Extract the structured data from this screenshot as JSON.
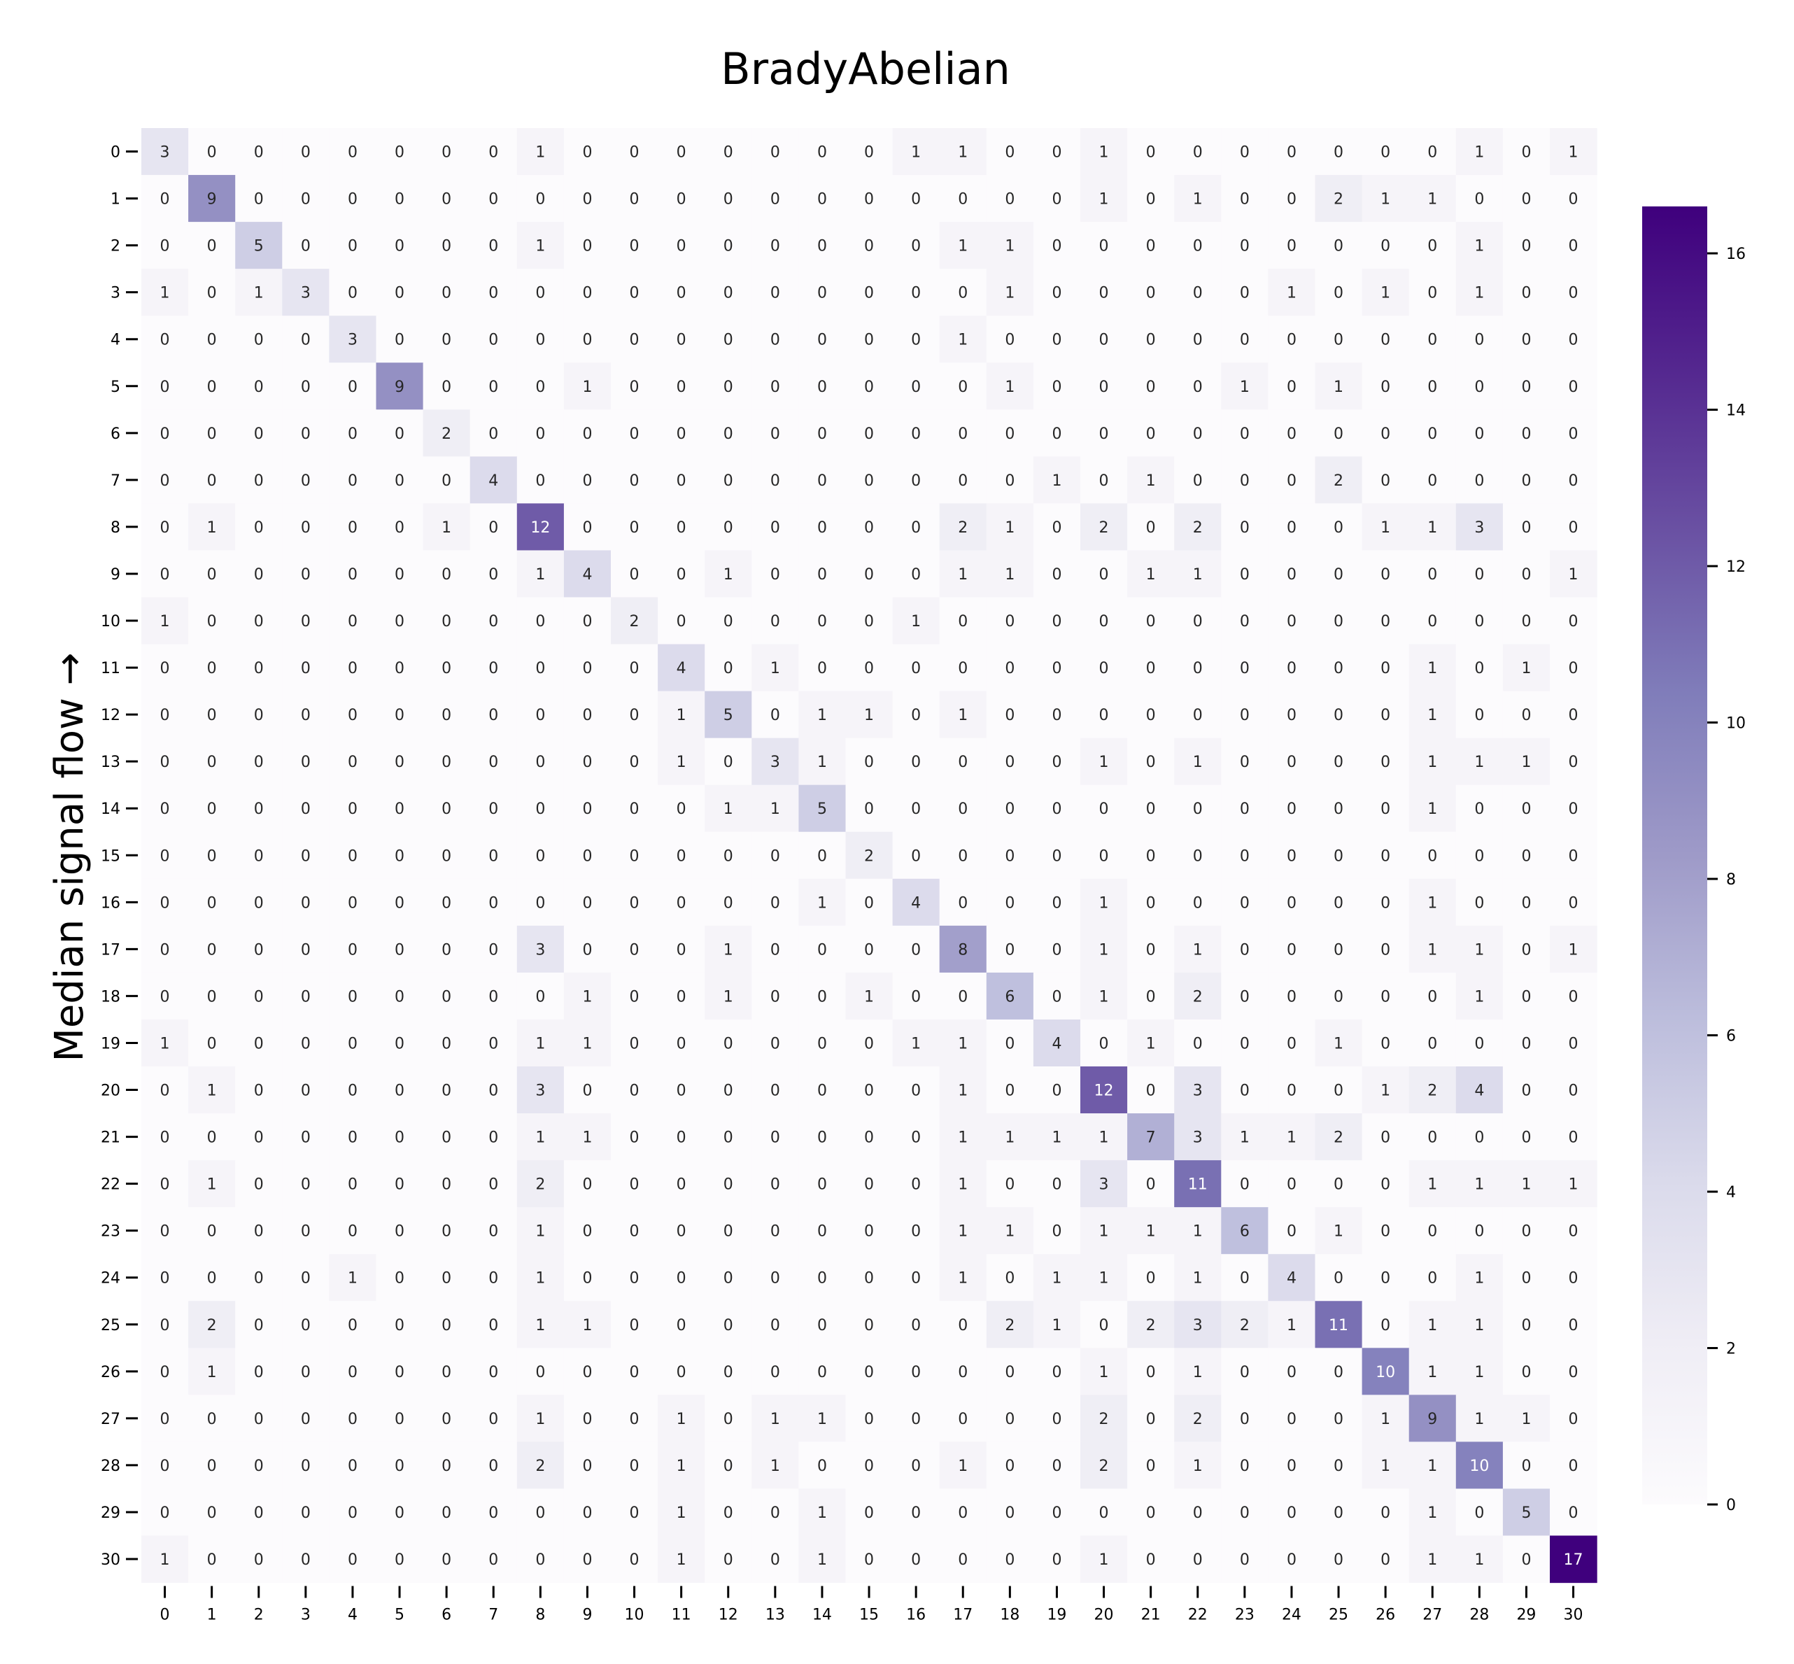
{
  "chart_data": {
    "type": "heatmap",
    "title": "BradyAbelian",
    "ylabel": "Median signal flow →",
    "xlabel": "",
    "x_categories": [
      "0",
      "1",
      "2",
      "3",
      "4",
      "5",
      "6",
      "7",
      "8",
      "9",
      "10",
      "11",
      "12",
      "13",
      "14",
      "15",
      "16",
      "17",
      "18",
      "19",
      "20",
      "21",
      "22",
      "23",
      "24",
      "25",
      "26",
      "27",
      "28",
      "29",
      "30"
    ],
    "y_categories": [
      "0",
      "1",
      "2",
      "3",
      "4",
      "5",
      "6",
      "7",
      "8",
      "9",
      "10",
      "11",
      "12",
      "13",
      "14",
      "15",
      "16",
      "17",
      "18",
      "19",
      "20",
      "21",
      "22",
      "23",
      "24",
      "25",
      "26",
      "27",
      "28",
      "29",
      "30"
    ],
    "matrix": [
      [
        3,
        0,
        0,
        0,
        0,
        0,
        0,
        0,
        1,
        0,
        0,
        0,
        0,
        0,
        0,
        0,
        1,
        1,
        0,
        0,
        1,
        0,
        0,
        0,
        0,
        0,
        0,
        0,
        1,
        0,
        1
      ],
      [
        0,
        9,
        0,
        0,
        0,
        0,
        0,
        0,
        0,
        0,
        0,
        0,
        0,
        0,
        0,
        0,
        0,
        0,
        0,
        0,
        1,
        0,
        1,
        0,
        0,
        2,
        1,
        1,
        0,
        0,
        0
      ],
      [
        0,
        0,
        5,
        0,
        0,
        0,
        0,
        0,
        1,
        0,
        0,
        0,
        0,
        0,
        0,
        0,
        0,
        1,
        1,
        0,
        0,
        0,
        0,
        0,
        0,
        0,
        0,
        0,
        1,
        0,
        0
      ],
      [
        1,
        0,
        1,
        3,
        0,
        0,
        0,
        0,
        0,
        0,
        0,
        0,
        0,
        0,
        0,
        0,
        0,
        0,
        1,
        0,
        0,
        0,
        0,
        0,
        1,
        0,
        1,
        0,
        1,
        0,
        0
      ],
      [
        0,
        0,
        0,
        0,
        3,
        0,
        0,
        0,
        0,
        0,
        0,
        0,
        0,
        0,
        0,
        0,
        0,
        1,
        0,
        0,
        0,
        0,
        0,
        0,
        0,
        0,
        0,
        0,
        0,
        0,
        0
      ],
      [
        0,
        0,
        0,
        0,
        0,
        9,
        0,
        0,
        0,
        1,
        0,
        0,
        0,
        0,
        0,
        0,
        0,
        0,
        1,
        0,
        0,
        0,
        0,
        1,
        0,
        1,
        0,
        0,
        0,
        0,
        0
      ],
      [
        0,
        0,
        0,
        0,
        0,
        0,
        2,
        0,
        0,
        0,
        0,
        0,
        0,
        0,
        0,
        0,
        0,
        0,
        0,
        0,
        0,
        0,
        0,
        0,
        0,
        0,
        0,
        0,
        0,
        0,
        0
      ],
      [
        0,
        0,
        0,
        0,
        0,
        0,
        0,
        4,
        0,
        0,
        0,
        0,
        0,
        0,
        0,
        0,
        0,
        0,
        0,
        1,
        0,
        1,
        0,
        0,
        0,
        2,
        0,
        0,
        0,
        0,
        0
      ],
      [
        0,
        1,
        0,
        0,
        0,
        0,
        1,
        0,
        12,
        0,
        0,
        0,
        0,
        0,
        0,
        0,
        0,
        2,
        1,
        0,
        2,
        0,
        2,
        0,
        0,
        0,
        1,
        1,
        3,
        0,
        0
      ],
      [
        0,
        0,
        0,
        0,
        0,
        0,
        0,
        0,
        1,
        4,
        0,
        0,
        1,
        0,
        0,
        0,
        0,
        1,
        1,
        0,
        0,
        1,
        1,
        0,
        0,
        0,
        0,
        0,
        0,
        0,
        1
      ],
      [
        1,
        0,
        0,
        0,
        0,
        0,
        0,
        0,
        0,
        0,
        2,
        0,
        0,
        0,
        0,
        0,
        1,
        0,
        0,
        0,
        0,
        0,
        0,
        0,
        0,
        0,
        0,
        0,
        0,
        0,
        0
      ],
      [
        0,
        0,
        0,
        0,
        0,
        0,
        0,
        0,
        0,
        0,
        0,
        4,
        0,
        1,
        0,
        0,
        0,
        0,
        0,
        0,
        0,
        0,
        0,
        0,
        0,
        0,
        0,
        1,
        0,
        1,
        0
      ],
      [
        0,
        0,
        0,
        0,
        0,
        0,
        0,
        0,
        0,
        0,
        0,
        1,
        5,
        0,
        1,
        1,
        0,
        1,
        0,
        0,
        0,
        0,
        0,
        0,
        0,
        0,
        0,
        1,
        0,
        0,
        0
      ],
      [
        0,
        0,
        0,
        0,
        0,
        0,
        0,
        0,
        0,
        0,
        0,
        1,
        0,
        3,
        1,
        0,
        0,
        0,
        0,
        0,
        1,
        0,
        1,
        0,
        0,
        0,
        0,
        1,
        1,
        1,
        0
      ],
      [
        0,
        0,
        0,
        0,
        0,
        0,
        0,
        0,
        0,
        0,
        0,
        0,
        1,
        1,
        5,
        0,
        0,
        0,
        0,
        0,
        0,
        0,
        0,
        0,
        0,
        0,
        0,
        1,
        0,
        0,
        0
      ],
      [
        0,
        0,
        0,
        0,
        0,
        0,
        0,
        0,
        0,
        0,
        0,
        0,
        0,
        0,
        0,
        2,
        0,
        0,
        0,
        0,
        0,
        0,
        0,
        0,
        0,
        0,
        0,
        0,
        0,
        0,
        0
      ],
      [
        0,
        0,
        0,
        0,
        0,
        0,
        0,
        0,
        0,
        0,
        0,
        0,
        0,
        0,
        1,
        0,
        4,
        0,
        0,
        0,
        1,
        0,
        0,
        0,
        0,
        0,
        0,
        1,
        0,
        0,
        0
      ],
      [
        0,
        0,
        0,
        0,
        0,
        0,
        0,
        0,
        3,
        0,
        0,
        0,
        1,
        0,
        0,
        0,
        0,
        8,
        0,
        0,
        1,
        0,
        1,
        0,
        0,
        0,
        0,
        1,
        1,
        0,
        1
      ],
      [
        0,
        0,
        0,
        0,
        0,
        0,
        0,
        0,
        0,
        1,
        0,
        0,
        1,
        0,
        0,
        1,
        0,
        0,
        6,
        0,
        1,
        0,
        2,
        0,
        0,
        0,
        0,
        0,
        1,
        0,
        0
      ],
      [
        1,
        0,
        0,
        0,
        0,
        0,
        0,
        0,
        1,
        1,
        0,
        0,
        0,
        0,
        0,
        0,
        1,
        1,
        0,
        4,
        0,
        1,
        0,
        0,
        0,
        1,
        0,
        0,
        0,
        0,
        0
      ],
      [
        0,
        1,
        0,
        0,
        0,
        0,
        0,
        0,
        3,
        0,
        0,
        0,
        0,
        0,
        0,
        0,
        0,
        1,
        0,
        0,
        12,
        0,
        3,
        0,
        0,
        0,
        1,
        2,
        4,
        0,
        0
      ],
      [
        0,
        0,
        0,
        0,
        0,
        0,
        0,
        0,
        1,
        1,
        0,
        0,
        0,
        0,
        0,
        0,
        0,
        1,
        1,
        1,
        1,
        7,
        3,
        1,
        1,
        2,
        0,
        0,
        0,
        0,
        0
      ],
      [
        0,
        1,
        0,
        0,
        0,
        0,
        0,
        0,
        2,
        0,
        0,
        0,
        0,
        0,
        0,
        0,
        0,
        1,
        0,
        0,
        3,
        0,
        11,
        0,
        0,
        0,
        0,
        1,
        1,
        1,
        1
      ],
      [
        0,
        0,
        0,
        0,
        0,
        0,
        0,
        0,
        1,
        0,
        0,
        0,
        0,
        0,
        0,
        0,
        0,
        1,
        1,
        0,
        1,
        1,
        1,
        6,
        0,
        1,
        0,
        0,
        0,
        0,
        0
      ],
      [
        0,
        0,
        0,
        0,
        1,
        0,
        0,
        0,
        1,
        0,
        0,
        0,
        0,
        0,
        0,
        0,
        0,
        1,
        0,
        1,
        1,
        0,
        1,
        0,
        4,
        0,
        0,
        0,
        1,
        0,
        0
      ],
      [
        0,
        2,
        0,
        0,
        0,
        0,
        0,
        0,
        1,
        1,
        0,
        0,
        0,
        0,
        0,
        0,
        0,
        0,
        2,
        1,
        0,
        2,
        3,
        2,
        1,
        11,
        0,
        1,
        1,
        0,
        0
      ],
      [
        0,
        1,
        0,
        0,
        0,
        0,
        0,
        0,
        0,
        0,
        0,
        0,
        0,
        0,
        0,
        0,
        0,
        0,
        0,
        0,
        1,
        0,
        1,
        0,
        0,
        0,
        10,
        1,
        1,
        0,
        0
      ],
      [
        0,
        0,
        0,
        0,
        0,
        0,
        0,
        0,
        1,
        0,
        0,
        1,
        0,
        1,
        1,
        0,
        0,
        0,
        0,
        0,
        2,
        0,
        2,
        0,
        0,
        0,
        1,
        9,
        1,
        1,
        0
      ],
      [
        0,
        0,
        0,
        0,
        0,
        0,
        0,
        0,
        2,
        0,
        0,
        1,
        0,
        1,
        0,
        0,
        0,
        1,
        0,
        0,
        2,
        0,
        1,
        0,
        0,
        0,
        1,
        1,
        10,
        0,
        0
      ],
      [
        0,
        0,
        0,
        0,
        0,
        0,
        0,
        0,
        0,
        0,
        0,
        1,
        0,
        0,
        1,
        0,
        0,
        0,
        0,
        0,
        0,
        0,
        0,
        0,
        0,
        0,
        0,
        1,
        0,
        5,
        0
      ],
      [
        1,
        0,
        0,
        0,
        0,
        0,
        0,
        0,
        0,
        0,
        0,
        1,
        0,
        0,
        1,
        0,
        0,
        0,
        0,
        0,
        1,
        0,
        0,
        0,
        0,
        0,
        0,
        1,
        1,
        0,
        17
      ]
    ],
    "colorbar": {
      "range": [
        0,
        16.6
      ],
      "ticks": [
        0,
        2,
        4,
        6,
        8,
        10,
        12,
        14,
        16
      ],
      "colormap": "Purples",
      "colors": [
        "#fcfbfd",
        "#efedf5",
        "#dadaeb",
        "#bcbddc",
        "#9e9ac8",
        "#807dba",
        "#6a51a3",
        "#54278f",
        "#3f007d"
      ]
    },
    "grid": false,
    "annotations": "cell counts shown in each cell"
  }
}
